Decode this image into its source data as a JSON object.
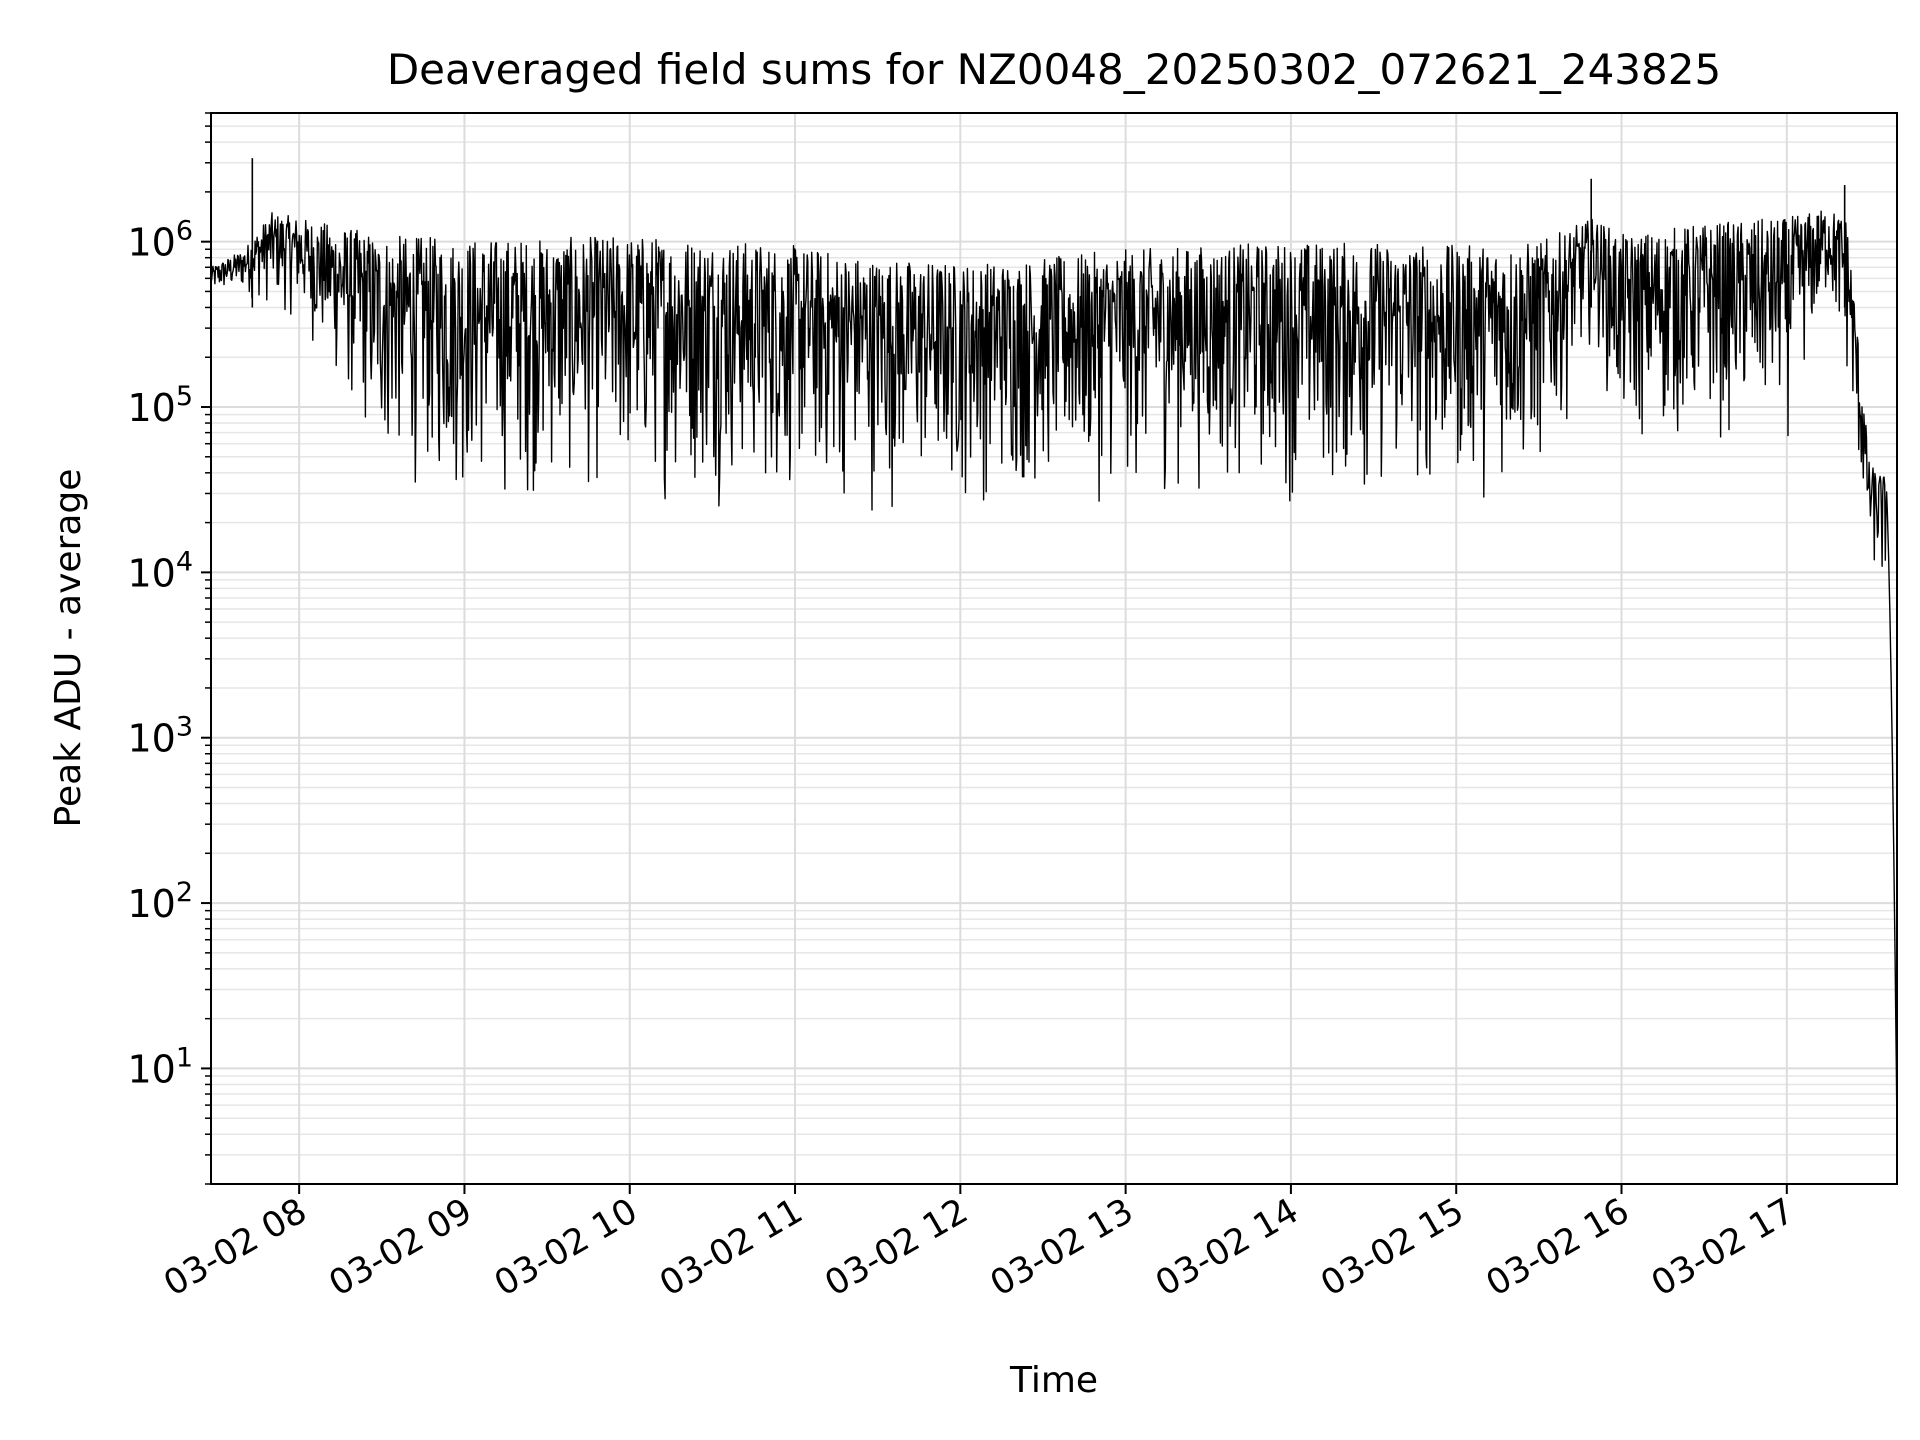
{
  "chart_data": {
    "type": "line",
    "title": "Deaveraged field sums for NZ0048_20250302_072621_243825",
    "xlabel": "Time",
    "ylabel": "Peak ADU - average",
    "yscale": "log",
    "ylim": [
      2,
      6000000
    ],
    "xlim": [
      "2025-03-02 07:28",
      "2025-03-02 17:40"
    ],
    "grid": true,
    "x_ticks": [
      "2025-03-02 08:00",
      "2025-03-02 09:00",
      "2025-03-02 10:00",
      "2025-03-02 11:00",
      "2025-03-02 12:00",
      "2025-03-02 13:00",
      "2025-03-02 14:00",
      "2025-03-02 15:00",
      "2025-03-02 16:00",
      "2025-03-02 17:00"
    ],
    "x_tick_labels": [
      "03-02 08",
      "03-02 09",
      "03-02 10",
      "03-02 11",
      "03-02 12",
      "03-02 13",
      "03-02 14",
      "03-02 15",
      "03-02 16",
      "03-02 17"
    ],
    "y_ticks": [
      10,
      100,
      1000,
      10000,
      100000,
      1000000
    ],
    "y_tick_mantissa": "10",
    "y_tick_exponents": [
      "1",
      "2",
      "3",
      "4",
      "5",
      "6"
    ],
    "series": [
      {
        "color": "#000000",
        "x": [
          "2025-03-02 07:28",
          "2025-03-02 07:40",
          "2025-03-02 07:50",
          "2025-03-02 08:00",
          "2025-03-02 08:30",
          "2025-03-02 09:00",
          "2025-03-02 09:30",
          "2025-03-02 10:00",
          "2025-03-02 10:30",
          "2025-03-02 11:00",
          "2025-03-02 11:30",
          "2025-03-02 12:00",
          "2025-03-02 12:30",
          "2025-03-02 13:00",
          "2025-03-02 13:30",
          "2025-03-02 14:00",
          "2025-03-02 14:30",
          "2025-03-02 15:00",
          "2025-03-02 15:30",
          "2025-03-02 15:50",
          "2025-03-02 16:00",
          "2025-03-02 16:30",
          "2025-03-02 17:00",
          "2025-03-02 17:15",
          "2025-03-02 17:22",
          "2025-03-02 17:30",
          "2025-03-02 17:36",
          "2025-03-02 17:40"
        ],
        "y_upper": [
          700000,
          900000,
          1500000,
          1400000,
          1100000,
          1050000,
          1050000,
          1100000,
          1050000,
          950000,
          800000,
          750000,
          800000,
          900000,
          950000,
          1000000,
          1000000,
          950000,
          1000000,
          1400000,
          1100000,
          1300000,
          1400000,
          1600000,
          1400000,
          45000,
          38000,
          10000
        ],
        "y_lower": [
          450000,
          450000,
          350000,
          300000,
          30000,
          20000,
          22000,
          22000,
          22000,
          20000,
          19000,
          20000,
          22000,
          22000,
          25000,
          22000,
          20000,
          22000,
          25000,
          250000,
          40000,
          50000,
          50000,
          400000,
          100000,
          10000,
          5000,
          4
        ]
      }
    ],
    "peaks": [
      {
        "x": "2025-03-02 07:43",
        "y": 3200000
      },
      {
        "x": "2025-03-02 15:49",
        "y": 2400000
      },
      {
        "x": "2025-03-02 17:21",
        "y": 2200000
      }
    ]
  }
}
